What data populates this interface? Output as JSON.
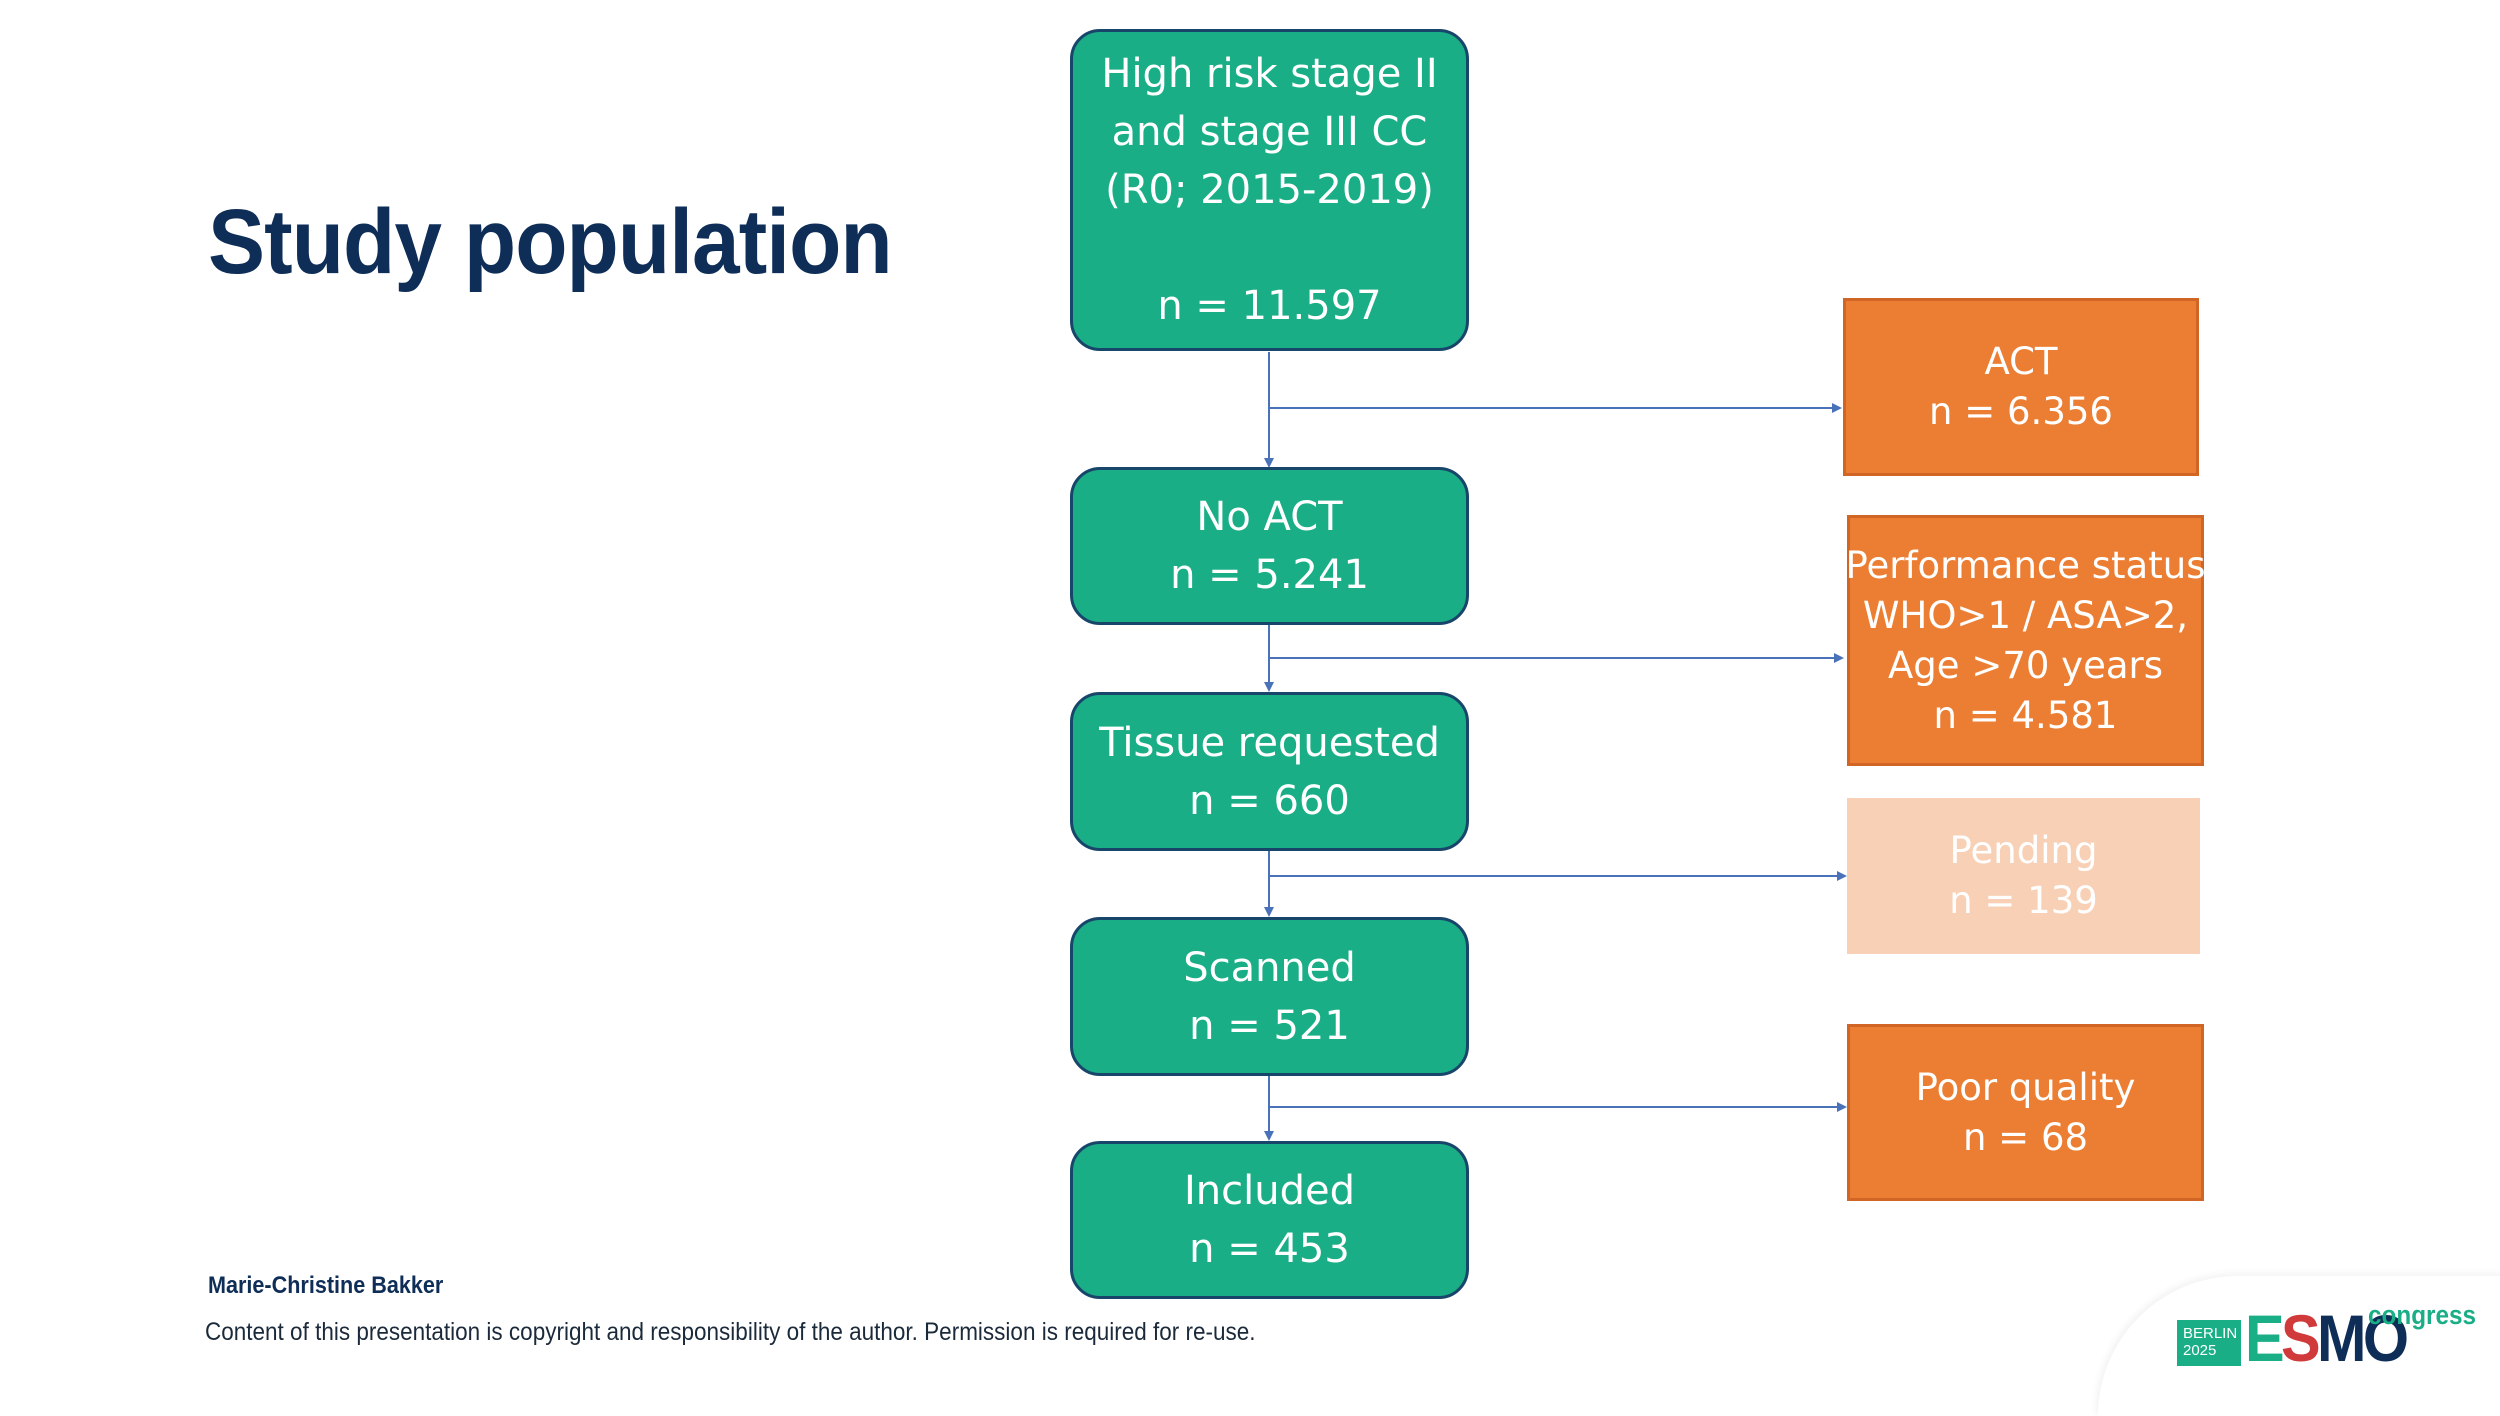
{
  "slide": {
    "title": "Study population",
    "author": "Marie-Christine Bakker",
    "copyright": "Content of this presentation is copyright and responsibility of the author. Permission is required for re-use."
  },
  "flow": {
    "main_boxes": [
      {
        "lines": [
          "High risk stage II",
          "and stage III CC",
          "(R0; 2015-2019)",
          "",
          "n = 11.597"
        ]
      },
      {
        "lines": [
          "No ACT",
          "n = 5.241"
        ]
      },
      {
        "lines": [
          "Tissue requested",
          "n = 660"
        ]
      },
      {
        "lines": [
          "Scanned",
          "n = 521"
        ]
      },
      {
        "lines": [
          "Included",
          "n = 453"
        ]
      }
    ],
    "exclusion_boxes": [
      {
        "lines": [
          "ACT",
          "n = 6.356"
        ]
      },
      {
        "lines": [
          "Performance status",
          "WHO>1 / ASA>2,",
          "Age >70 years",
          "n = 4.581"
        ]
      },
      {
        "lines": [
          "Pending",
          "n = 139"
        ]
      },
      {
        "lines": [
          "Poor quality",
          "n = 68"
        ]
      }
    ]
  },
  "logo": {
    "city": "BERLIN",
    "year": "2025",
    "name_e": "E",
    "name_s": "S",
    "name_mo": "MO",
    "suffix": "congress"
  },
  "colors": {
    "main_box": "#1aae87",
    "main_border": "#18456a",
    "exclusion_box": "#ec7e33",
    "pending_box": "#f8d0b6",
    "arrow": "#4a72b8",
    "title": "#0e2d57"
  }
}
